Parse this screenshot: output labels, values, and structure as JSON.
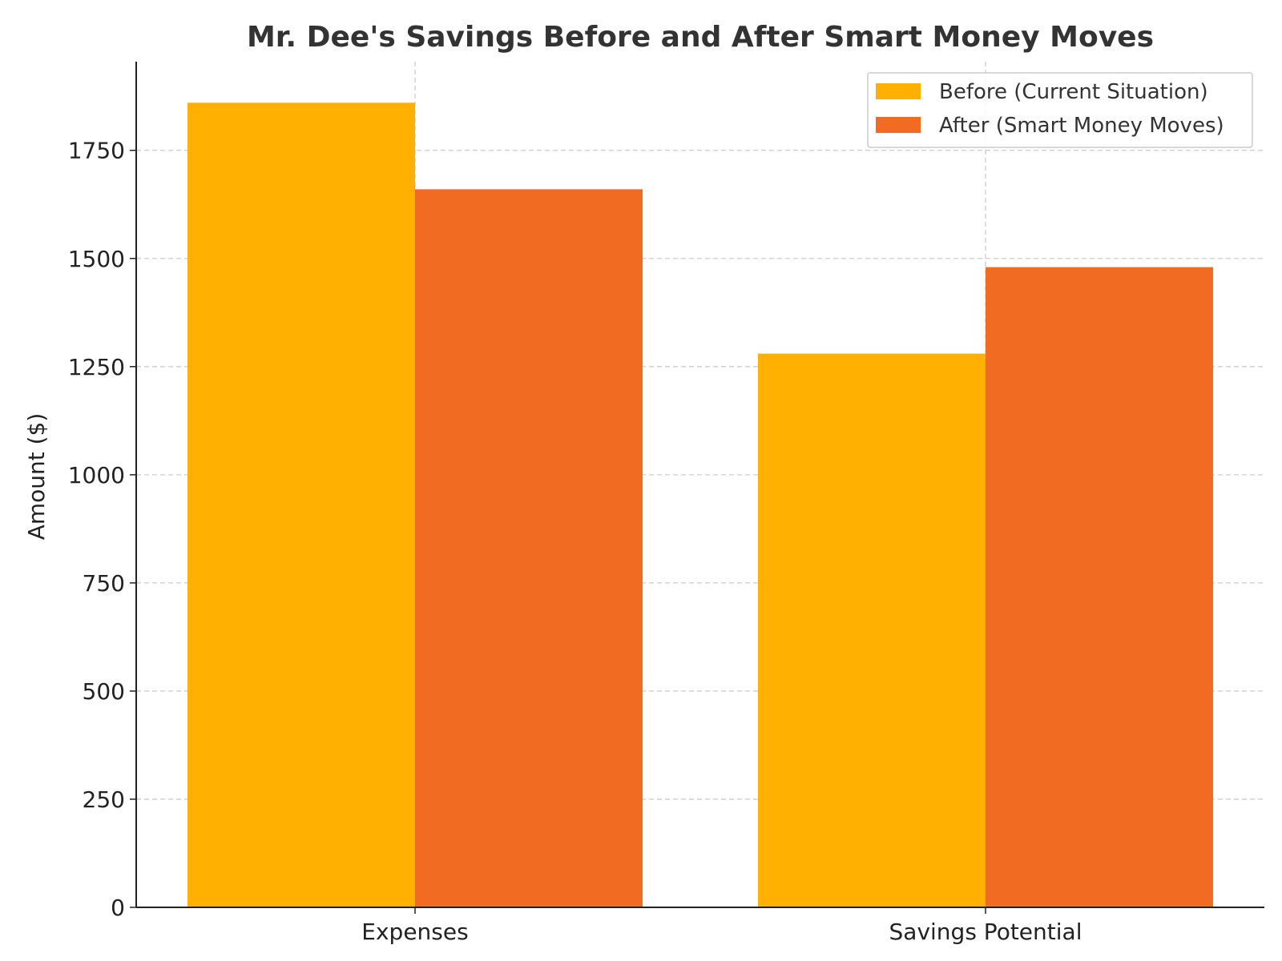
{
  "chart_data": {
    "type": "bar",
    "title": "Mr. Dee's Savings Before and After Smart Money Moves",
    "xlabel": "",
    "ylabel": "Amount ($)",
    "categories": [
      "Expenses",
      "Savings Potential"
    ],
    "series": [
      {
        "name": "Before (Current Situation)",
        "values": [
          1860,
          1280
        ],
        "color": "#FFB000"
      },
      {
        "name": "After (Smart Money Moves)",
        "values": [
          1660,
          1480
        ],
        "color": "#F26B23"
      }
    ],
    "ylim": [
      0,
      1955
    ],
    "yticks": [
      0,
      250,
      500,
      750,
      1000,
      1250,
      1500,
      1750
    ],
    "grid": true,
    "legend_position": "top-right"
  }
}
